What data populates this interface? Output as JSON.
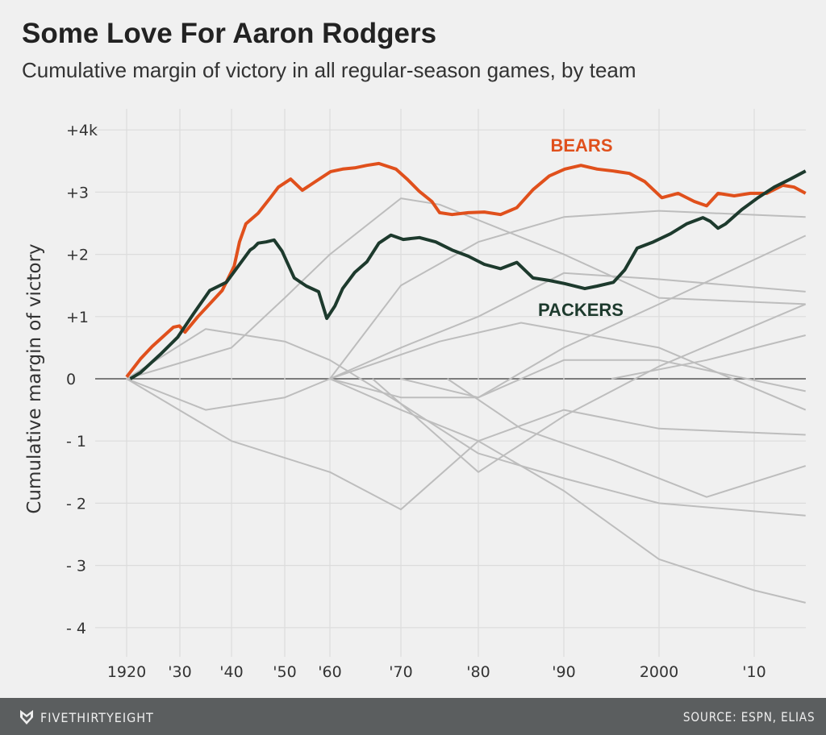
{
  "title": "Some Love For Aaron Rodgers",
  "subtitle": "Cumulative margin of victory in all regular-season games, by team",
  "footer": {
    "brand": "FIVETHIRTYEIGHT",
    "source": "SOURCE: ESPN, ELIAS",
    "logo_icon": "fivethirtyeight-fox-icon"
  },
  "chart_data": {
    "type": "line",
    "ylabel": "Cumulative margin of victory",
    "ylim": [
      -4.4,
      4.3
    ],
    "y_unit": "thousands of points",
    "yticks": [
      {
        "value": 4,
        "label": "+4k"
      },
      {
        "value": 3,
        "label": "+3"
      },
      {
        "value": 2,
        "label": "+2"
      },
      {
        "value": 1,
        "label": "+1"
      },
      {
        "value": 0,
        "label": "0"
      },
      {
        "value": -1,
        "label": "- 1"
      },
      {
        "value": -2,
        "label": "- 2"
      },
      {
        "value": -3,
        "label": "- 3"
      },
      {
        "value": -4,
        "label": "- 4"
      }
    ],
    "xticks": [
      {
        "value": 1920,
        "label": "1920"
      },
      {
        "value": 1930,
        "label": "'30"
      },
      {
        "value": 1940,
        "label": "'40"
      },
      {
        "value": 1950,
        "label": "'50"
      },
      {
        "value": 1960,
        "label": "'60"
      },
      {
        "value": 1970,
        "label": "'70"
      },
      {
        "value": 1980,
        "label": "'80"
      },
      {
        "value": 1990,
        "label": "'90"
      },
      {
        "value": 2000,
        "label": "2000"
      },
      {
        "value": 2010,
        "label": "'10"
      }
    ],
    "grid": true,
    "colors": {
      "bears": "#e0501c",
      "packers": "#1d3a2d",
      "others": "#bdbdbd",
      "zero": "#555555"
    },
    "series": [
      {
        "name": "BEARS",
        "color": "#e0501c",
        "highlight": true,
        "x": [
          1920,
          1922.6,
          1924.8,
          1928.8,
          1929.9,
          1931,
          1933.5,
          1938.2,
          1940.5,
          1941.5,
          1942.7,
          1945,
          1947.3,
          1948.8,
          1951.3,
          1953.9,
          1956.6,
          1960.1,
          1961.8,
          1963.5,
          1965.2,
          1966.9,
          1969.3,
          1970.8,
          1972.4,
          1974,
          1975,
          1976.6,
          1978.7,
          1980.7,
          1982.6,
          1984.5,
          1986.4,
          1988.3,
          1990.1,
          1991.8,
          1993.5,
          1995.2,
          1996.9,
          1998.5,
          2000.3,
          2002,
          2003.7,
          2005,
          2006.2,
          2007.9,
          2009.6,
          2011.3,
          2013,
          2014.2,
          2015.4
        ],
        "y": [
          0.03,
          0.32,
          0.52,
          0.83,
          0.85,
          0.75,
          1.0,
          1.42,
          1.81,
          2.2,
          2.49,
          2.66,
          2.91,
          3.08,
          3.21,
          3.03,
          3.16,
          3.33,
          3.37,
          3.39,
          3.43,
          3.46,
          3.37,
          3.21,
          3.01,
          2.85,
          2.67,
          2.64,
          2.67,
          2.68,
          2.64,
          2.75,
          3.04,
          3.26,
          3.37,
          3.43,
          3.37,
          3.34,
          3.3,
          3.17,
          2.91,
          2.98,
          2.85,
          2.78,
          2.98,
          2.94,
          2.98,
          2.98,
          3.11,
          3.08,
          2.98
        ]
      },
      {
        "name": "PACKERS",
        "color": "#1d3a2d",
        "highlight": true,
        "x": [
          1920.7,
          1922.6,
          1926.3,
          1929.6,
          1932.6,
          1935.8,
          1939,
          1943.5,
          1944.2,
          1945,
          1946.5,
          1948,
          1949.5,
          1952.1,
          1954.8,
          1957.5,
          1959.3,
          1960.7,
          1961.8,
          1963.5,
          1965.2,
          1966.9,
          1968.6,
          1970.3,
          1972.4,
          1974.5,
          1976.6,
          1978.7,
          1980.7,
          1982.6,
          1984.5,
          1986.4,
          1988.3,
          1990.1,
          1992.2,
          1993.5,
          1995.2,
          1996.4,
          1997.7,
          1999.4,
          2001.2,
          2002.9,
          2004.6,
          2005.4,
          2006.2,
          2007,
          2008.7,
          2010.4,
          2012.1,
          2013.8,
          2015.4
        ],
        "y": [
          0,
          0.1,
          0.39,
          0.67,
          1.04,
          1.42,
          1.55,
          2.07,
          2.11,
          2.18,
          2.2,
          2.23,
          2.05,
          1.62,
          1.49,
          1.4,
          0.97,
          1.17,
          1.45,
          1.71,
          1.88,
          2.18,
          2.31,
          2.24,
          2.27,
          2.2,
          2.07,
          1.97,
          1.84,
          1.77,
          1.87,
          1.62,
          1.58,
          1.53,
          1.45,
          1.49,
          1.55,
          1.75,
          2.1,
          2.2,
          2.33,
          2.49,
          2.59,
          2.53,
          2.42,
          2.49,
          2.72,
          2.91,
          3.08,
          3.21,
          3.34
        ]
      },
      {
        "x": [
          1920,
          1940,
          1950,
          1960,
          1970,
          1975,
          1990,
          2000,
          2015.4
        ],
        "y": [
          0,
          0.5,
          1.3,
          2.0,
          2.9,
          2.8,
          2.0,
          1.3,
          1.2
        ]
      },
      {
        "x": [
          1960,
          1970,
          1980,
          1990,
          2000,
          2015.4
        ],
        "y": [
          0,
          1.5,
          2.2,
          2.6,
          2.7,
          2.6
        ]
      },
      {
        "x": [
          1920,
          1940,
          1960,
          1970,
          1980,
          1990,
          2000,
          2015.4
        ],
        "y": [
          0,
          -1.0,
          -1.5,
          -2.1,
          -1.0,
          -0.5,
          -0.8,
          -0.9
        ]
      },
      {
        "x": [
          1960,
          1970,
          1980,
          1990,
          2000,
          2010,
          2015.4
        ],
        "y": [
          0,
          -0.5,
          -1.0,
          -1.8,
          -2.9,
          -3.4,
          -3.6
        ]
      },
      {
        "x": [
          1960,
          1970,
          1980,
          1990,
          2000,
          2015.4
        ],
        "y": [
          0,
          0.5,
          1.0,
          1.7,
          1.6,
          1.4
        ]
      },
      {
        "x": [
          1960,
          1970,
          1980,
          1990,
          2000,
          2015.4
        ],
        "y": [
          0,
          -0.3,
          -0.3,
          0.3,
          0.3,
          -0.2
        ]
      },
      {
        "x": [
          1920,
          1935,
          1950,
          1960,
          1970,
          1980,
          1990,
          2000,
          2015.4
        ],
        "y": [
          0,
          0.8,
          0.6,
          0.3,
          -0.4,
          -1.2,
          -1.6,
          -2.0,
          -2.2
        ]
      },
      {
        "x": [
          1970,
          1980,
          1990,
          2000,
          2015.4
        ],
        "y": [
          0,
          -0.3,
          0.5,
          1.2,
          2.3
        ]
      },
      {
        "x": [
          1976,
          1985,
          1995,
          2005,
          2015.4
        ],
        "y": [
          0,
          -0.8,
          -1.3,
          -1.9,
          -1.4
        ]
      },
      {
        "x": [
          1995,
          2005,
          2015.4
        ],
        "y": [
          0,
          0.3,
          0.7
        ]
      },
      {
        "x": [
          1920,
          1935,
          1950,
          1960,
          1975,
          1985,
          2000,
          2015.4
        ],
        "y": [
          0,
          -0.5,
          -0.3,
          0,
          0.6,
          0.9,
          0.5,
          -0.5
        ]
      },
      {
        "x": [
          1966,
          1980,
          1990,
          2000,
          2015.4
        ],
        "y": [
          0,
          -1.5,
          -0.6,
          0.2,
          1.2
        ]
      }
    ],
    "annotations": [
      {
        "text": "BEARS",
        "series": "BEARS"
      },
      {
        "text": "PACKERS",
        "series": "PACKERS"
      }
    ]
  }
}
